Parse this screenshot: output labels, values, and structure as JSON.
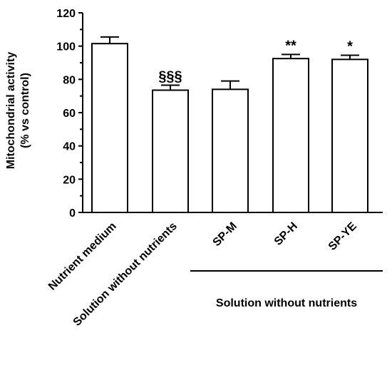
{
  "chart_data": {
    "type": "bar",
    "categories": [
      "Nutrient medium",
      "Solution without nutrients",
      "SP-M",
      "SP-H",
      "SP-YE"
    ],
    "values": [
      101.5,
      73.5,
      74,
      92.5,
      92
    ],
    "errors": [
      4,
      3,
      5,
      2.5,
      2.5
    ],
    "annotations": [
      "",
      "§§§",
      "",
      "**",
      "*"
    ],
    "ylabel_line1": "Mitochondrial activity",
    "ylabel_line2": "(% vs control)",
    "yticks": [
      0,
      20,
      40,
      60,
      80,
      100,
      120
    ],
    "ylim": [
      0,
      120
    ],
    "group_label": "Solution without nutrients",
    "group_members": [
      "SP-M",
      "SP-H",
      "SP-YE"
    ],
    "bar_fill": "#ffffff",
    "stroke_color": "#000000"
  }
}
